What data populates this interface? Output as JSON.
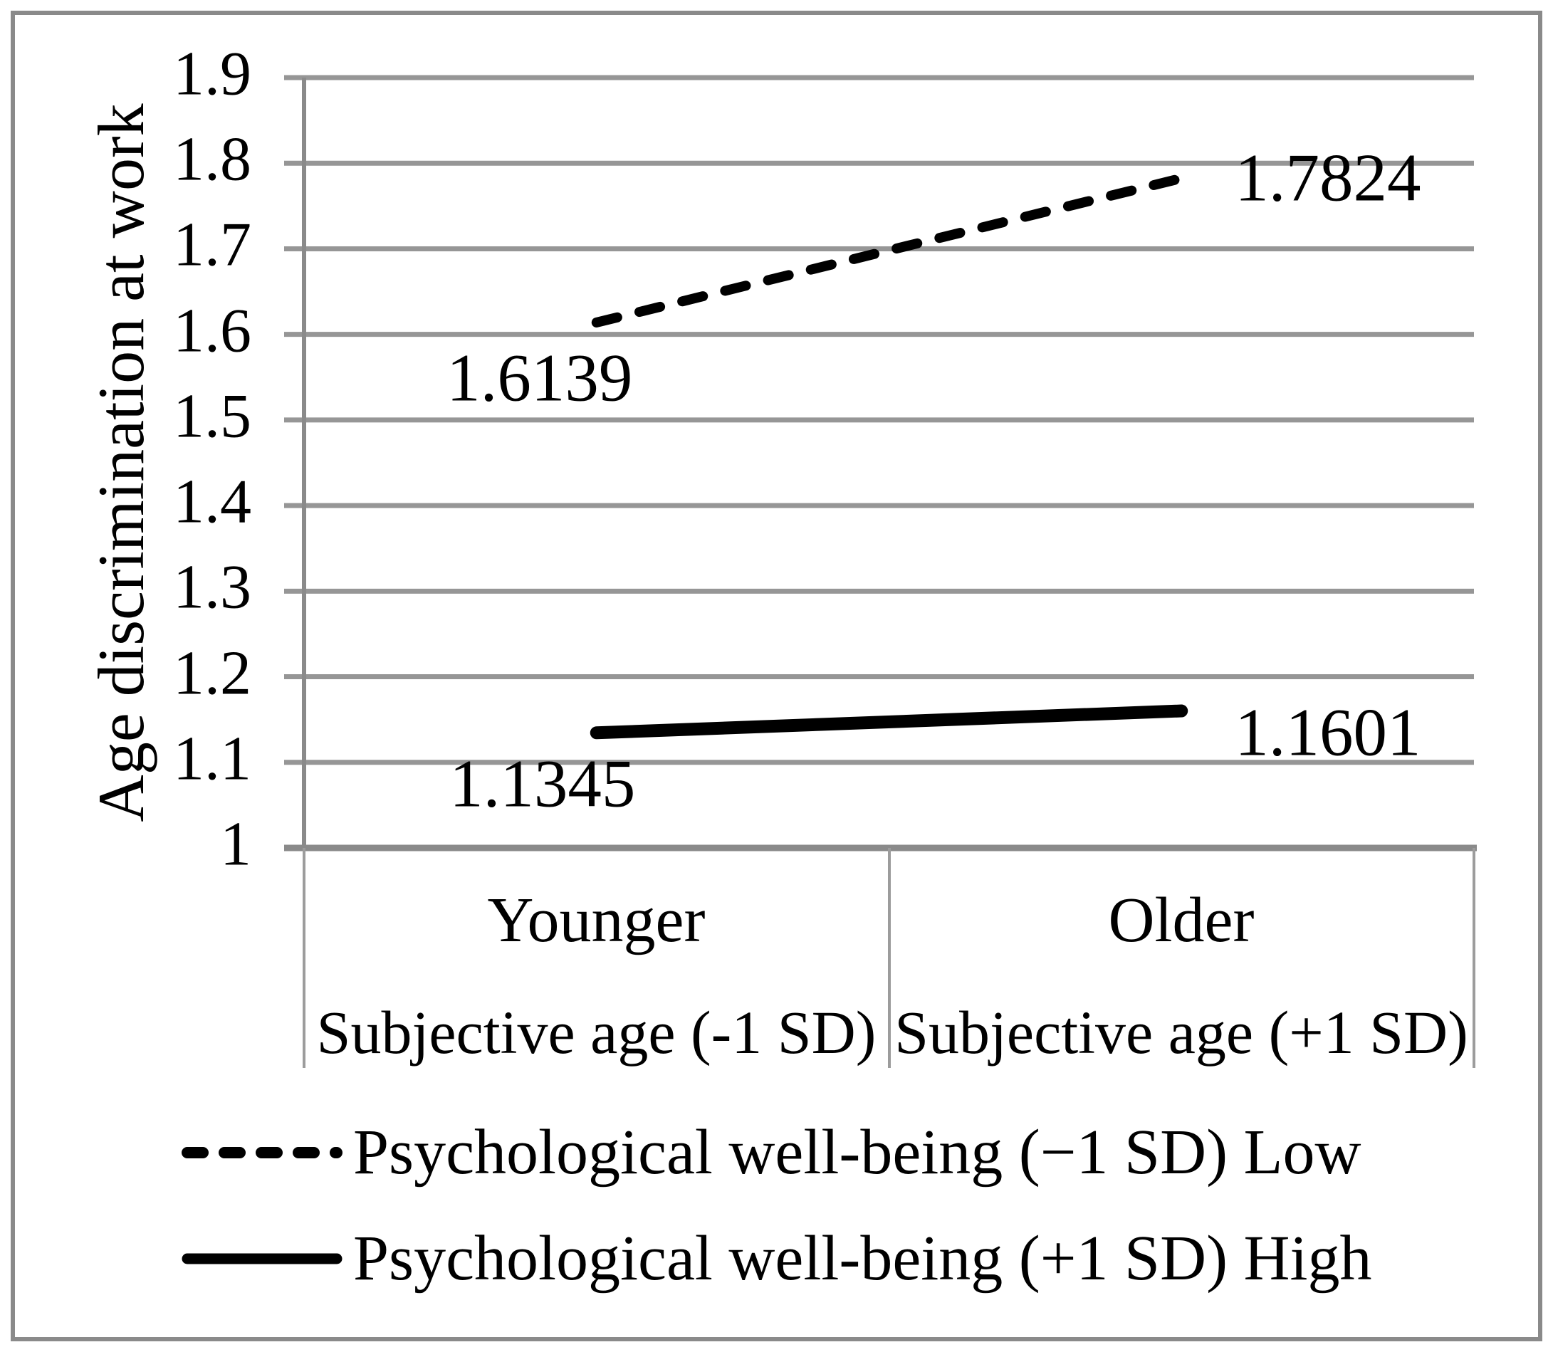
{
  "figure": {
    "background": "#ffffff",
    "border_color": "#8a8a8a",
    "gridline_color": "#969696",
    "axis_color": "#8a8a8a",
    "category_border_color": "#9c9c9c",
    "series_color": "#000000"
  },
  "chart_data": {
    "type": "line",
    "title": "",
    "xlabel": "",
    "ylabel": "Age discrimination at work",
    "ylim": [
      1,
      1.9
    ],
    "ytick_step": 0.1,
    "yticks": [
      "1",
      "1.1",
      "1.2",
      "1.3",
      "1.4",
      "1.5",
      "1.6",
      "1.7",
      "1.8",
      "1.9"
    ],
    "grid": "horizontal",
    "legend_position": "bottom-left",
    "categories": [
      {
        "group": "Younger",
        "subtitle": "Subjective age (-1 SD)"
      },
      {
        "group": "Older",
        "subtitle": "Subjective age (+1 SD)"
      }
    ],
    "series": [
      {
        "name": "Psychological well-being (−1 SD) Low",
        "style": "dashed",
        "values": [
          1.6139,
          1.7824
        ],
        "value_labels": [
          "1.6139",
          "1.7824"
        ]
      },
      {
        "name": "Psychological well-being (+1 SD) High",
        "style": "solid",
        "values": [
          1.1345,
          1.1601
        ],
        "value_labels": [
          "1.1345",
          "1.1601"
        ]
      }
    ]
  }
}
